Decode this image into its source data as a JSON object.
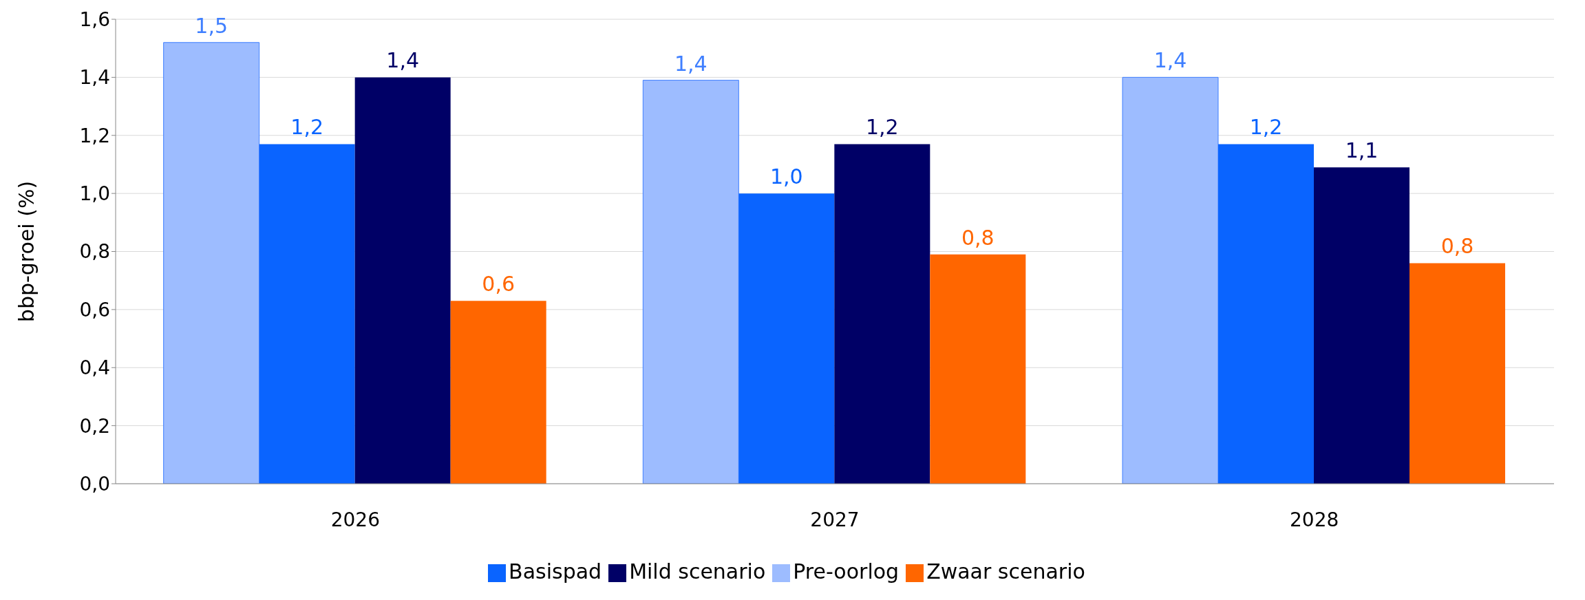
{
  "chart_data": {
    "type": "bar",
    "ylabel": "bbp-groei (%)",
    "categories": [
      "2026",
      "2027",
      "2028"
    ],
    "series": [
      {
        "name": "Pre-oorlog",
        "color": "#9dbcff",
        "values": [
          1.52,
          1.39,
          1.4
        ],
        "value_labels": [
          "1,5",
          "1,4",
          "1,4"
        ]
      },
      {
        "name": "Basispad",
        "color": "#0a64ff",
        "values": [
          1.17,
          1.0,
          1.17
        ],
        "value_labels": [
          "1,2",
          "1,0",
          "1,2"
        ]
      },
      {
        "name": "Mild scenario",
        "color": "#000066",
        "values": [
          1.4,
          1.17,
          1.09
        ],
        "value_labels": [
          "1,4",
          "1,2",
          "1,1"
        ]
      },
      {
        "name": "Zwaar scenario",
        "color": "#ff6600",
        "values": [
          0.63,
          0.79,
          0.76
        ],
        "value_labels": [
          "0,6",
          "0,8",
          "0,8"
        ]
      }
    ],
    "ylim": [
      0,
      1.6
    ],
    "yticks": [
      {
        "value": 0,
        "label": "0,0"
      },
      {
        "value": 0.2,
        "label": "0,2"
      },
      {
        "value": 0.4,
        "label": "0,4"
      },
      {
        "value": 0.6,
        "label": "0,6"
      },
      {
        "value": 0.8,
        "label": "0,8"
      },
      {
        "value": 1.0,
        "label": "1,0"
      },
      {
        "value": 1.2,
        "label": "1,2"
      },
      {
        "value": 1.4,
        "label": "1,4"
      },
      {
        "value": 1.6,
        "label": "1,6"
      }
    ],
    "grid": "y",
    "legend": "bottom"
  }
}
